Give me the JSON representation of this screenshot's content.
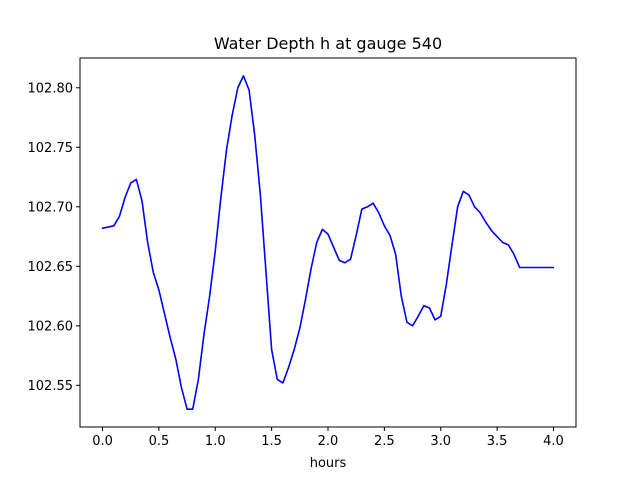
{
  "chart_data": {
    "type": "line",
    "title": "Water Depth h at gauge 540",
    "xlabel": "hours",
    "ylabel": "",
    "xlim": [
      -0.2,
      4.2
    ],
    "ylim": [
      102.515,
      102.825
    ],
    "xticks": [
      0.0,
      0.5,
      1.0,
      1.5,
      2.0,
      2.5,
      3.0,
      3.5,
      4.0
    ],
    "xtick_labels": [
      "0.0",
      "0.5",
      "1.0",
      "1.5",
      "2.0",
      "2.5",
      "3.0",
      "3.5",
      "4.0"
    ],
    "yticks": [
      102.55,
      102.6,
      102.65,
      102.7,
      102.75,
      102.8
    ],
    "ytick_labels": [
      "102.55",
      "102.60",
      "102.65",
      "102.70",
      "102.75",
      "102.80"
    ],
    "grid": false,
    "legend": "none",
    "series": [
      {
        "color": "#0000ff",
        "x": [
          0.0,
          0.05,
          0.1,
          0.15,
          0.2,
          0.25,
          0.3,
          0.35,
          0.4,
          0.45,
          0.5,
          0.55,
          0.6,
          0.65,
          0.7,
          0.75,
          0.8,
          0.85,
          0.9,
          0.95,
          1.0,
          1.05,
          1.1,
          1.15,
          1.2,
          1.25,
          1.3,
          1.35,
          1.4,
          1.45,
          1.5,
          1.55,
          1.6,
          1.65,
          1.7,
          1.75,
          1.8,
          1.85,
          1.9,
          1.95,
          2.0,
          2.05,
          2.1,
          2.15,
          2.2,
          2.25,
          2.3,
          2.35,
          2.4,
          2.45,
          2.5,
          2.55,
          2.6,
          2.65,
          2.7,
          2.75,
          2.8,
          2.85,
          2.9,
          2.95,
          3.0,
          3.05,
          3.1,
          3.15,
          3.2,
          3.25,
          3.3,
          3.35,
          3.4,
          3.45,
          3.5,
          3.55,
          3.6,
          3.65,
          3.7,
          3.75,
          3.8,
          3.85,
          3.9,
          3.95,
          4.0
        ],
        "y": [
          102.682,
          102.683,
          102.684,
          102.692,
          102.708,
          102.72,
          102.723,
          102.705,
          102.67,
          102.645,
          102.63,
          102.61,
          102.59,
          102.572,
          102.548,
          102.53,
          102.53,
          102.555,
          102.593,
          102.625,
          102.663,
          102.708,
          102.748,
          102.777,
          102.8,
          102.81,
          102.798,
          102.76,
          102.71,
          102.645,
          102.58,
          102.555,
          102.552,
          102.565,
          102.58,
          102.598,
          102.622,
          102.648,
          102.67,
          102.681,
          102.677,
          102.666,
          102.655,
          102.653,
          102.656,
          102.676,
          102.698,
          102.7,
          102.703,
          102.695,
          102.684,
          102.676,
          102.66,
          102.625,
          102.603,
          102.6,
          102.608,
          102.617,
          102.615,
          102.605,
          102.608,
          102.635,
          102.668,
          102.7,
          102.713,
          102.71,
          102.7,
          102.695,
          102.687,
          102.68,
          102.675,
          102.67,
          102.668,
          102.66,
          102.649,
          102.649,
          102.649,
          102.649,
          102.649,
          102.649,
          102.649
        ]
      }
    ]
  }
}
